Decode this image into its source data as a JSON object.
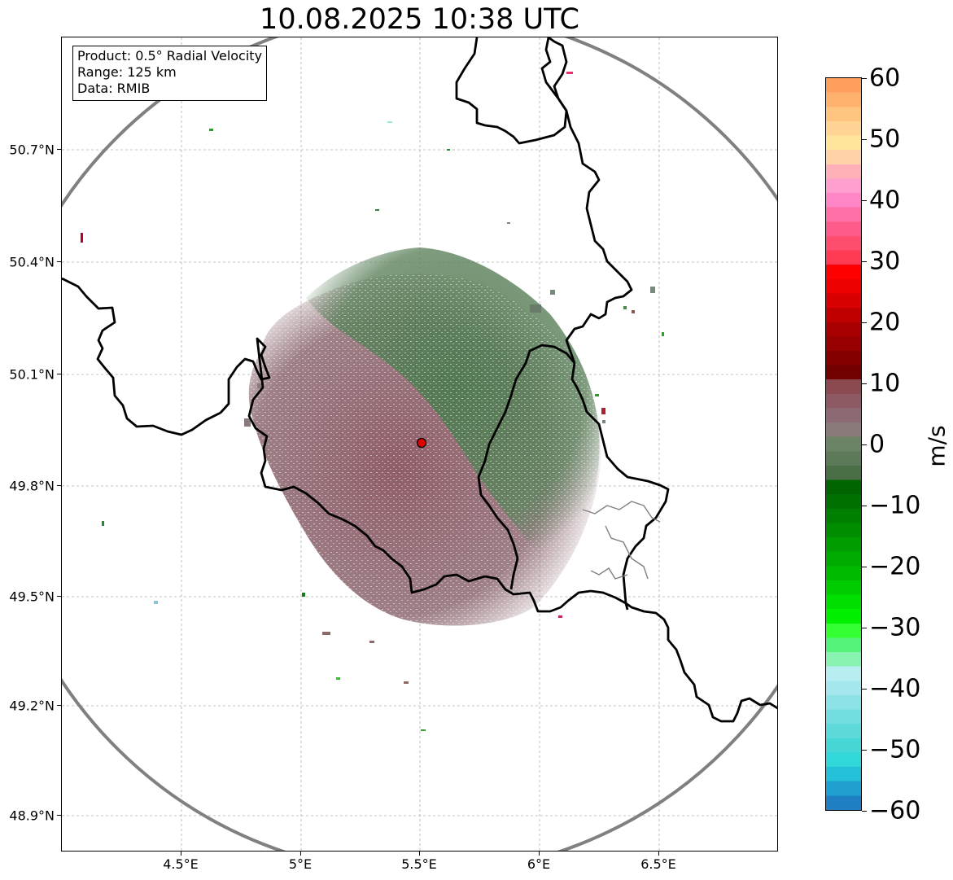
{
  "title": "10.08.2025 10:38 UTC",
  "info": {
    "product": "Product: 0.5° Radial Velocity",
    "range": "Range: 125 km",
    "data": "Data: RMIB"
  },
  "y_ticks": [
    "50.7°N",
    "50.4°N",
    "50.1°N",
    "49.8°N",
    "49.5°N",
    "49.2°N",
    "48.9°N"
  ],
  "x_ticks": [
    "4.5°E",
    "5°E",
    "5.5°E",
    "6°E",
    "6.5°E"
  ],
  "colorbar": {
    "label": "m/s",
    "ticks": [
      "60",
      "50",
      "40",
      "30",
      "20",
      "10",
      "0",
      "−10",
      "−20",
      "−30",
      "−40",
      "−50",
      "−60"
    ],
    "range": [
      -60,
      60
    ],
    "colors_top_to_bottom": [
      "#ff9f5e",
      "#ffb26e",
      "#ffc480",
      "#ffd494",
      "#ffe59c",
      "#ffd2a8",
      "#ffb0b8",
      "#ff9fd0",
      "#ff86c6",
      "#ff6fa8",
      "#ff5b8a",
      "#ff4d6d",
      "#ff3a55",
      "#ff0000",
      "#ee0000",
      "#d80000",
      "#c00000",
      "#a80000",
      "#960000",
      "#840000",
      "#720000",
      "#8a4a4f",
      "#8d5a63",
      "#8c6a74",
      "#8a7a7a",
      "#6b8466",
      "#5c7a58",
      "#4a6e46",
      "#006400",
      "#007000",
      "#007f00",
      "#008e00",
      "#009c00",
      "#00ab00",
      "#00ba00",
      "#00cc00",
      "#00e000",
      "#00f000",
      "#33ff33",
      "#55f27a",
      "#88f2b0",
      "#b7eef2",
      "#a4e8ee",
      "#8de2e6",
      "#74dde0",
      "#5ed9da",
      "#46d6d6",
      "#30d8da",
      "#24c0d8",
      "#1e9fd0",
      "#1f7fc2"
    ]
  },
  "map": {
    "lon_range": [
      4.0,
      7.0
    ],
    "lat_range": [
      48.8,
      51.0
    ],
    "radar_site": {
      "lon": 5.505,
      "lat": 49.915
    },
    "range_km": 125
  }
}
